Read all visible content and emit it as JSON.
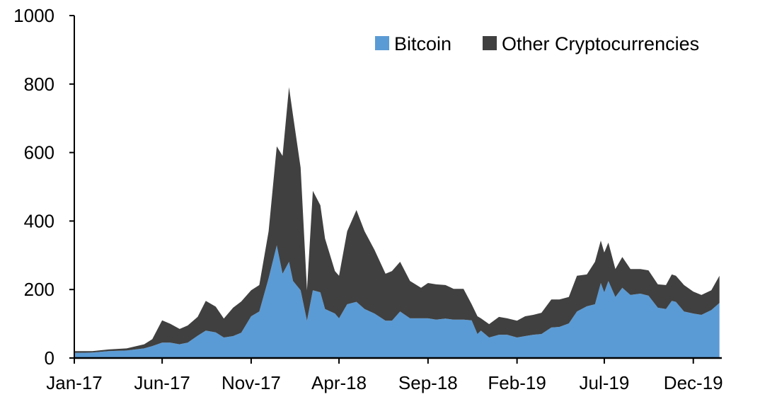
{
  "chart_data": {
    "type": "area",
    "stacked": true,
    "title": "",
    "xlabel": "",
    "ylabel": "",
    "ylim": [
      0,
      1000
    ],
    "yticks": [
      "0",
      "200",
      "400",
      "600",
      "800",
      "1000"
    ],
    "xlim": [
      "2017-01-01",
      "2020-01-19"
    ],
    "xtick_dates": [
      "2017-01-01",
      "2017-06-01",
      "2017-11-01",
      "2018-04-01",
      "2018-09-01",
      "2019-02-01",
      "2019-07-01",
      "2019-12-01"
    ],
    "xticks": [
      "Jan-17",
      "Jun-17",
      "Nov-17",
      "Apr-18",
      "Sep-18",
      "Feb-19",
      "Jul-19",
      "Dec-19"
    ],
    "grid": false,
    "legend_position": "top-right",
    "x": [
      "2017-01-01",
      "2017-02-01",
      "2017-03-01",
      "2017-04-01",
      "2017-05-01",
      "2017-05-15",
      "2017-06-01",
      "2017-06-15",
      "2017-07-01",
      "2017-07-15",
      "2017-08-01",
      "2017-08-15",
      "2017-09-01",
      "2017-09-15",
      "2017-10-01",
      "2017-10-15",
      "2017-11-01",
      "2017-11-15",
      "2017-12-01",
      "2017-12-15",
      "2017-12-25",
      "2018-01-05",
      "2018-01-12",
      "2018-01-25",
      "2018-02-05",
      "2018-02-15",
      "2018-02-28",
      "2018-03-08",
      "2018-03-25",
      "2018-04-01",
      "2018-04-15",
      "2018-05-01",
      "2018-05-15",
      "2018-06-01",
      "2018-06-20",
      "2018-07-01",
      "2018-07-15",
      "2018-08-01",
      "2018-08-20",
      "2018-09-01",
      "2018-09-15",
      "2018-10-01",
      "2018-10-15",
      "2018-11-01",
      "2018-11-15",
      "2018-11-25",
      "2018-12-01",
      "2018-12-15",
      "2019-01-01",
      "2019-01-15",
      "2019-02-01",
      "2019-02-15",
      "2019-03-01",
      "2019-03-15",
      "2019-04-01",
      "2019-04-15",
      "2019-05-01",
      "2019-05-15",
      "2019-06-01",
      "2019-06-15",
      "2019-06-25",
      "2019-07-01",
      "2019-07-08",
      "2019-07-20",
      "2019-08-01",
      "2019-08-15",
      "2019-09-01",
      "2019-09-15",
      "2019-10-01",
      "2019-10-15",
      "2019-10-25",
      "2019-11-01",
      "2019-11-15",
      "2019-12-01",
      "2019-12-15",
      "2020-01-01",
      "2020-01-15"
    ],
    "series": [
      {
        "name": "Bitcoin",
        "color": "#5b9bd5",
        "values": [
          15,
          16,
          20,
          22,
          28,
          35,
          45,
          45,
          40,
          45,
          65,
          80,
          75,
          60,
          64,
          74,
          122,
          136,
          233,
          329,
          246,
          281,
          225,
          198,
          109,
          198,
          192,
          143,
          130,
          116,
          157,
          164,
          143,
          130,
          109,
          109,
          136,
          116,
          116,
          116,
          112,
          115,
          112,
          112,
          110,
          70,
          80,
          60,
          68,
          68,
          60,
          64,
          68,
          70,
          89,
          91,
          101,
          136,
          151,
          157,
          219,
          192,
          225,
          178,
          205,
          184,
          188,
          182,
          147,
          143,
          167,
          164,
          136,
          130,
          126,
          140,
          161
        ]
      },
      {
        "name": "Other Cryptocurrencies",
        "color": "#404040",
        "values": [
          5,
          4,
          5,
          6,
          12,
          20,
          65,
          55,
          45,
          50,
          55,
          87,
          75,
          55,
          83,
          91,
          76,
          77,
          137,
          289,
          344,
          510,
          483,
          358,
          89,
          290,
          254,
          206,
          124,
          124,
          213,
          268,
          227,
          186,
          137,
          145,
          145,
          109,
          89,
          103,
          103,
          98,
          90,
          90,
          47,
          52,
          36,
          39,
          52,
          48,
          49,
          58,
          58,
          62,
          82,
          80,
          77,
          104,
          93,
          124,
          124,
          116,
          112,
          82,
          90,
          76,
          72,
          74,
          68,
          70,
          77,
          76,
          77,
          64,
          58,
          58,
          79
        ]
      }
    ]
  }
}
